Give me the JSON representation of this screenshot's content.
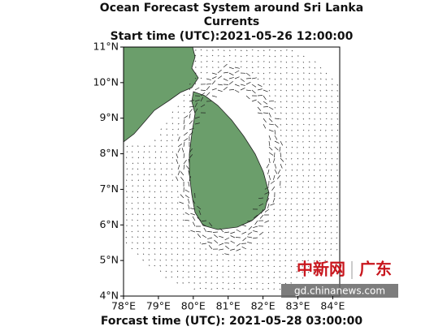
{
  "map": {
    "title": "Ocean Forecast System around Sri Lanka",
    "subtitle": "Currents",
    "start_time": "Start time (UTC):2021-05-26 12:00:00",
    "forecast_time": "Forcast time (UTC): 2021-05-28 03:00:00",
    "xlim": [
      78,
      84.2
    ],
    "ylim": [
      4,
      11
    ],
    "xticks": [
      {
        "value": 78,
        "label": "78°E"
      },
      {
        "value": 79,
        "label": "79°E"
      },
      {
        "value": 80,
        "label": "80°E"
      },
      {
        "value": 81,
        "label": "81°E"
      },
      {
        "value": 82,
        "label": "82°E"
      },
      {
        "value": 83,
        "label": "83°E"
      },
      {
        "value": 84,
        "label": "84°E"
      }
    ],
    "yticks": [
      {
        "value": 4,
        "label": "4°N"
      },
      {
        "value": 5,
        "label": "5°N"
      },
      {
        "value": 6,
        "label": "6°N"
      },
      {
        "value": 7,
        "label": "7°N"
      },
      {
        "value": 8,
        "label": "8°N"
      },
      {
        "value": 9,
        "label": "9°N"
      },
      {
        "value": 10,
        "label": "10°N"
      },
      {
        "value": 11,
        "label": "11°N"
      }
    ]
  },
  "watermark": {
    "brand": "中新网",
    "region": "广东",
    "url": "gd.chinanews.com"
  }
}
